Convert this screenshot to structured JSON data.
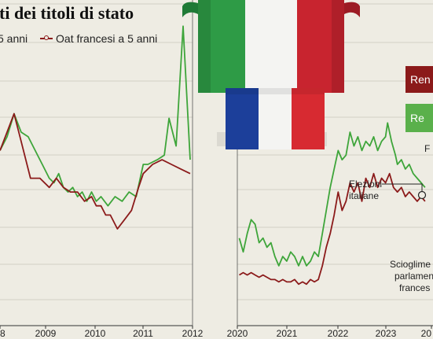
{
  "title": "ti dei titoli di stato",
  "legend": [
    {
      "label": "5 anni",
      "color": "#3ea53a"
    },
    {
      "label": "Oat francesi a 5 anni",
      "color": "#8b1a1a"
    }
  ],
  "right_labels": [
    {
      "text": "Ren",
      "color": "#8b1a1a"
    },
    {
      "text": "Re",
      "color": "#5ab04b"
    }
  ],
  "side_letter": "F",
  "annotations": {
    "elezioni": [
      "Elezioni",
      "italiane"
    ],
    "scioglimento": [
      "Scioglime",
      "parlamen",
      "frances"
    ]
  },
  "colors": {
    "green": "#3ea53a",
    "red": "#8b1a1a",
    "grid": "#c9c6bc",
    "background": "#eeece3"
  },
  "decor": {
    "italy_flag": [
      "#2e9b46",
      "#f4f4f2",
      "#c8242f"
    ],
    "france_flag": [
      "#1c3f9a",
      "#f4f4f2",
      "#d72a31"
    ]
  },
  "chart_data": [
    {
      "type": "line",
      "xlabel": "",
      "ylabel": "",
      "xticks": [
        "8",
        "2009",
        "2010",
        "2011",
        "2012"
      ],
      "xlim": [
        2007.95,
        2012.05
      ],
      "series": [
        {
          "color": "#3ea53a",
          "x": [
            2007.95,
            2008.1,
            2008.25,
            2008.4,
            2008.55,
            2008.7,
            2008.85,
            2009.0,
            2009.1,
            2009.2,
            2009.3,
            2009.4,
            2009.5,
            2009.6,
            2009.7,
            2009.8,
            2009.9,
            2010.0,
            2010.1,
            2010.25,
            2010.4,
            2010.55,
            2010.7,
            2010.85,
            2011.0,
            2011.1,
            2011.3,
            2011.45,
            2011.55,
            2011.7,
            2011.85,
            2012.0
          ],
          "y": [
            3.8,
            4.1,
            4.6,
            4.2,
            4.1,
            3.8,
            3.5,
            3.2,
            3.1,
            3.3,
            3.0,
            2.9,
            3.0,
            2.8,
            2.9,
            2.7,
            2.9,
            2.7,
            2.8,
            2.6,
            2.8,
            2.7,
            2.9,
            2.8,
            3.5,
            3.5,
            3.6,
            3.7,
            4.5,
            3.9,
            6.5,
            3.6
          ]
        },
        {
          "color": "#8b1a1a",
          "x": [
            2007.95,
            2008.1,
            2008.25,
            2008.4,
            2008.6,
            2008.8,
            2009.0,
            2009.15,
            2009.3,
            2009.45,
            2009.6,
            2009.75,
            2009.9,
            2010.0,
            2010.1,
            2010.2,
            2010.3,
            2010.45,
            2010.6,
            2010.75,
            2010.9,
            2011.0,
            2011.2,
            2011.4,
            2011.6,
            2011.8,
            2012.0
          ],
          "y": [
            3.8,
            4.2,
            4.6,
            4.0,
            3.2,
            3.2,
            3.0,
            3.2,
            3.0,
            2.9,
            2.9,
            2.7,
            2.8,
            2.6,
            2.6,
            2.4,
            2.4,
            2.1,
            2.3,
            2.5,
            3.0,
            3.3,
            3.5,
            3.6,
            3.5,
            3.4,
            3.3
          ]
        }
      ]
    },
    {
      "type": "line",
      "xlabel": "",
      "ylabel": "",
      "xticks": [
        "2020",
        "2021",
        "2022",
        "2023",
        "20"
      ],
      "xlim": [
        2019.95,
        2024.9
      ],
      "series": [
        {
          "color": "#3ea53a",
          "x": [
            2020.0,
            2020.1,
            2020.2,
            2020.3,
            2020.4,
            2020.5,
            2020.6,
            2020.7,
            2020.8,
            2020.9,
            2021.0,
            2021.1,
            2021.2,
            2021.3,
            2021.4,
            2021.5,
            2021.6,
            2021.7,
            2021.8,
            2021.9,
            2022.0,
            2022.1,
            2022.2,
            2022.3,
            2022.4,
            2022.5,
            2022.6,
            2022.7,
            2022.8,
            2022.9,
            2023.0,
            2023.1,
            2023.2,
            2023.3,
            2023.4,
            2023.5,
            2023.6,
            2023.7,
            2023.75,
            2023.85,
            2023.95,
            2024.0,
            2024.1,
            2024.2,
            2024.3,
            2024.4,
            2024.5,
            2024.6,
            2024.7
          ],
          "y": [
            1.9,
            1.6,
            2.0,
            2.3,
            2.2,
            1.8,
            1.9,
            1.7,
            1.8,
            1.5,
            1.3,
            1.5,
            1.4,
            1.6,
            1.5,
            1.3,
            1.5,
            1.3,
            1.4,
            1.6,
            1.5,
            2.0,
            2.5,
            3.0,
            3.4,
            3.8,
            3.6,
            3.7,
            4.2,
            3.9,
            4.1,
            3.8,
            4.0,
            3.9,
            4.1,
            3.8,
            4.0,
            4.1,
            4.4,
            4.0,
            3.7,
            3.5,
            3.6,
            3.4,
            3.5,
            3.3,
            3.2,
            3.1,
            3.0
          ]
        },
        {
          "color": "#8b1a1a",
          "x": [
            2020.0,
            2020.1,
            2020.2,
            2020.3,
            2020.4,
            2020.5,
            2020.6,
            2020.7,
            2020.8,
            2020.9,
            2021.0,
            2021.1,
            2021.2,
            2021.3,
            2021.4,
            2021.5,
            2021.6,
            2021.7,
            2021.8,
            2021.9,
            2022.0,
            2022.1,
            2022.2,
            2022.3,
            2022.4,
            2022.5,
            2022.6,
            2022.7,
            2022.8,
            2022.9,
            2023.0,
            2023.1,
            2023.2,
            2023.3,
            2023.4,
            2023.5,
            2023.6,
            2023.7,
            2023.8,
            2023.9,
            2024.0,
            2024.1,
            2024.2,
            2024.3,
            2024.4,
            2024.5,
            2024.6,
            2024.7
          ],
          "y": [
            1.1,
            1.15,
            1.1,
            1.15,
            1.1,
            1.05,
            1.1,
            1.05,
            1.0,
            1.0,
            0.95,
            1.0,
            0.95,
            0.95,
            1.0,
            0.9,
            0.95,
            0.9,
            1.0,
            0.95,
            1.0,
            1.3,
            1.7,
            2.0,
            2.4,
            2.9,
            2.5,
            2.7,
            3.1,
            2.9,
            3.1,
            2.7,
            3.2,
            3.0,
            3.3,
            3.0,
            3.2,
            3.1,
            3.3,
            3.0,
            2.9,
            3.0,
            2.8,
            2.9,
            2.8,
            2.7,
            2.8,
            2.7
          ]
        }
      ]
    }
  ]
}
